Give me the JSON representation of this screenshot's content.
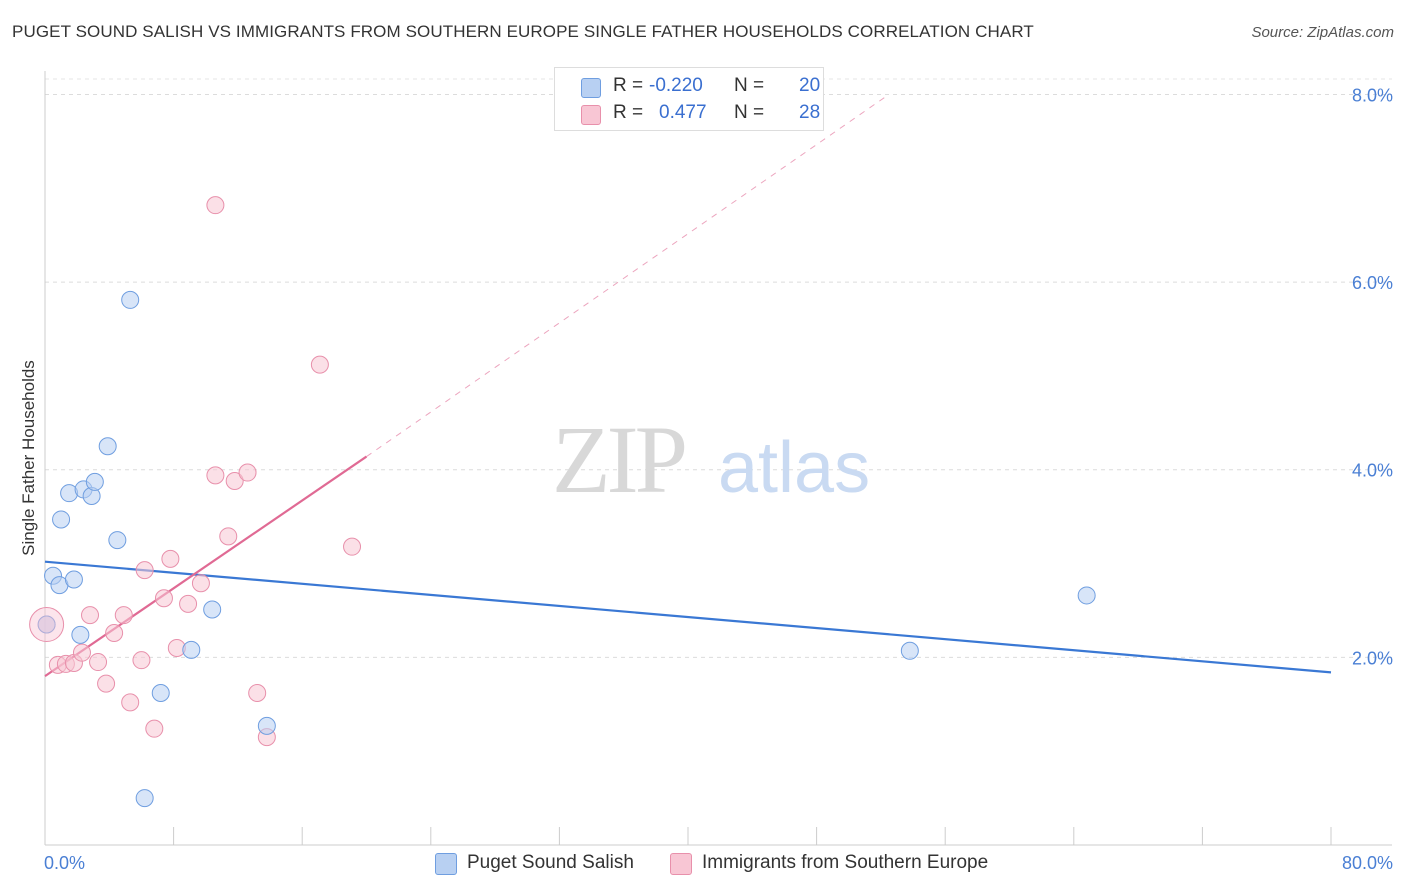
{
  "title": "PUGET SOUND SALISH VS IMMIGRANTS FROM SOUTHERN EUROPE SINGLE FATHER HOUSEHOLDS CORRELATION CHART",
  "source": "Source: ZipAtlas.com",
  "watermark": {
    "zip": "ZIP",
    "atlas": "atlas"
  },
  "legend": {
    "rows": [
      {
        "r_label": "R =",
        "r_value": "-0.220",
        "n_label": "N =",
        "n_value": "20"
      },
      {
        "r_label": "R =",
        "r_value": "0.477",
        "n_label": "N =",
        "n_value": "28"
      }
    ]
  },
  "bottom_legend": [
    "Puget Sound Salish",
    "Immigrants from Southern Europe"
  ],
  "colors": {
    "blue_fill": "#b8d0f2",
    "blue_stroke": "#6f9ee0",
    "blue_line": "#3a78d4",
    "pink_fill": "#f8c6d4",
    "pink_stroke": "#e890ab",
    "pink_line": "#e06a94",
    "tick_text": "#4a7fd4"
  },
  "chart_data": {
    "type": "scatter",
    "title": "PUGET SOUND SALISH VS IMMIGRANTS FROM SOUTHERN EUROPE SINGLE FATHER HOUSEHOLDS CORRELATION CHART",
    "xlabel": "",
    "ylabel": "Single Father Households",
    "xlim": [
      0,
      80
    ],
    "ylim": [
      0,
      8.25
    ],
    "x_tick_labels": [
      "0.0%",
      "80.0%"
    ],
    "y_ticks": [
      2,
      4,
      6,
      8
    ],
    "y_tick_labels": [
      "2.0%",
      "4.0%",
      "6.0%",
      "8.0%"
    ],
    "grid": true,
    "series": [
      {
        "name": "Puget Sound Salish",
        "r": -0.22,
        "n": 20,
        "points": [
          {
            "x": 0.1,
            "y": 2.35
          },
          {
            "x": 0.5,
            "y": 2.87
          },
          {
            "x": 0.9,
            "y": 2.77
          },
          {
            "x": 1.0,
            "y": 3.47
          },
          {
            "x": 1.5,
            "y": 3.75
          },
          {
            "x": 1.8,
            "y": 2.83
          },
          {
            "x": 2.2,
            "y": 2.24
          },
          {
            "x": 2.4,
            "y": 3.79
          },
          {
            "x": 2.9,
            "y": 3.72
          },
          {
            "x": 3.1,
            "y": 3.87
          },
          {
            "x": 3.9,
            "y": 4.25
          },
          {
            "x": 4.5,
            "y": 3.25
          },
          {
            "x": 5.3,
            "y": 5.81
          },
          {
            "x": 6.2,
            "y": 0.5
          },
          {
            "x": 7.2,
            "y": 1.62
          },
          {
            "x": 9.1,
            "y": 2.08
          },
          {
            "x": 10.4,
            "y": 2.51
          },
          {
            "x": 13.8,
            "y": 1.27
          },
          {
            "x": 53.8,
            "y": 2.07
          },
          {
            "x": 64.8,
            "y": 2.66
          }
        ],
        "trend": {
          "x0": 0,
          "y0": 3.02,
          "x1": 80,
          "y1": 1.84
        }
      },
      {
        "name": "Immigrants from Southern Europe",
        "r": 0.477,
        "n": 28,
        "points": [
          {
            "x": 0.1,
            "y": 2.35
          },
          {
            "x": 0.8,
            "y": 1.92
          },
          {
            "x": 1.3,
            "y": 1.93
          },
          {
            "x": 1.8,
            "y": 1.94
          },
          {
            "x": 2.3,
            "y": 2.05
          },
          {
            "x": 2.8,
            "y": 2.45
          },
          {
            "x": 3.3,
            "y": 1.95
          },
          {
            "x": 3.8,
            "y": 1.72
          },
          {
            "x": 4.3,
            "y": 2.26
          },
          {
            "x": 4.9,
            "y": 2.45
          },
          {
            "x": 5.3,
            "y": 1.52
          },
          {
            "x": 6.0,
            "y": 1.97
          },
          {
            "x": 6.2,
            "y": 2.93
          },
          {
            "x": 6.8,
            "y": 1.24
          },
          {
            "x": 7.4,
            "y": 2.63
          },
          {
            "x": 7.8,
            "y": 3.05
          },
          {
            "x": 8.2,
            "y": 2.1
          },
          {
            "x": 8.9,
            "y": 2.57
          },
          {
            "x": 9.7,
            "y": 2.79
          },
          {
            "x": 10.6,
            "y": 3.94
          },
          {
            "x": 11.4,
            "y": 3.29
          },
          {
            "x": 11.8,
            "y": 3.88
          },
          {
            "x": 12.6,
            "y": 3.97
          },
          {
            "x": 13.2,
            "y": 1.62
          },
          {
            "x": 13.8,
            "y": 1.15
          },
          {
            "x": 17.1,
            "y": 5.12
          },
          {
            "x": 19.1,
            "y": 3.18
          },
          {
            "x": 10.6,
            "y": 6.82
          }
        ],
        "trend": {
          "x0": 0,
          "y0": 1.8,
          "x1": 20,
          "y1": 4.14,
          "dash_to_x": 52.5,
          "dash_to_y": 8.0
        }
      }
    ]
  }
}
